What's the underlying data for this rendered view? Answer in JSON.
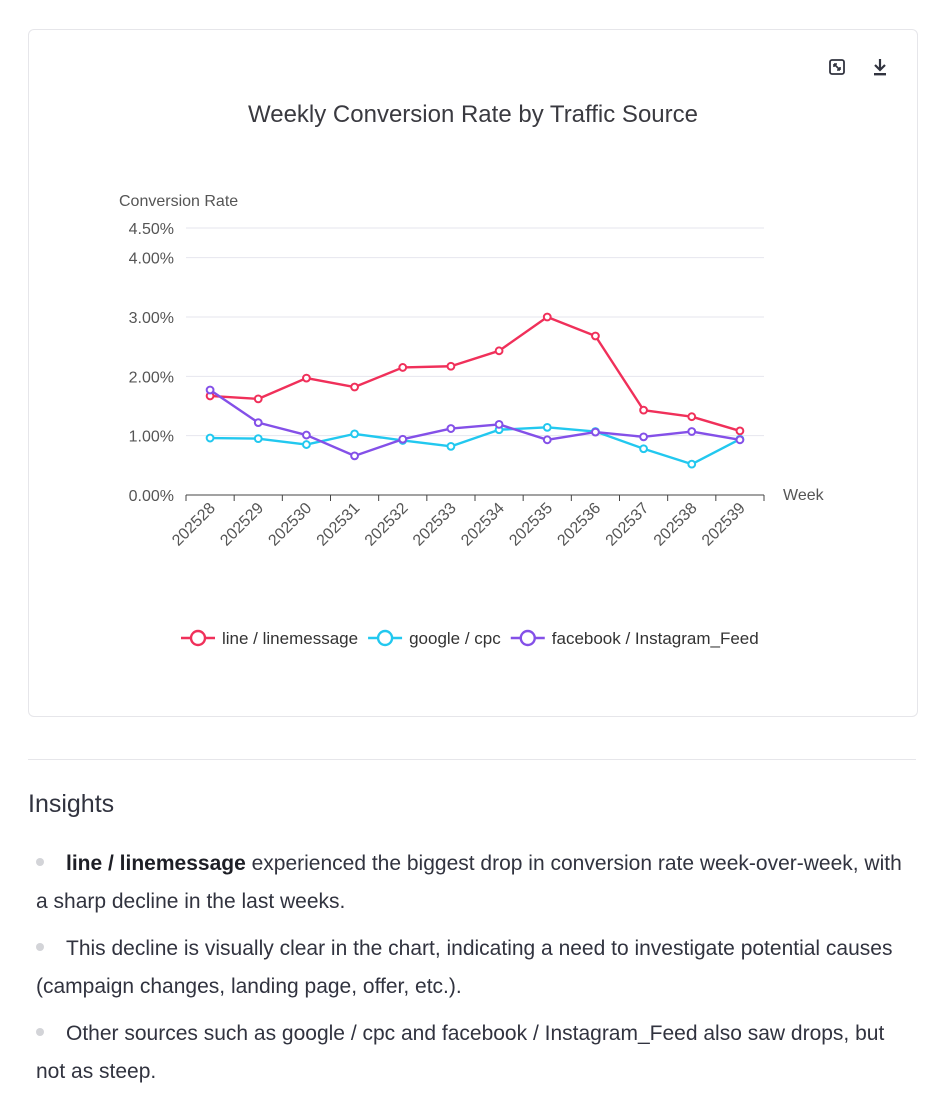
{
  "toolbar": {
    "expand_icon": "expand-icon",
    "download_icon": "download-icon"
  },
  "chart_data": {
    "type": "line",
    "title": "Weekly Conversion Rate by Traffic Source",
    "ylabel": "Conversion Rate",
    "xlabel": "Week",
    "ylim": [
      0,
      4.5
    ],
    "yticks": [
      {
        "value": 0,
        "label": "0.00%"
      },
      {
        "value": 1,
        "label": "1.00%"
      },
      {
        "value": 2,
        "label": "2.00%"
      },
      {
        "value": 3,
        "label": "3.00%"
      },
      {
        "value": 4,
        "label": "4.00%"
      },
      {
        "value": 4.5,
        "label": "4.50%"
      }
    ],
    "categories": [
      "202528",
      "202529",
      "202530",
      "202531",
      "202532",
      "202533",
      "202534",
      "202535",
      "202536",
      "202537",
      "202538",
      "202539"
    ],
    "series": [
      {
        "name": "line / linemessage",
        "color": "#f0305a",
        "values": [
          1.67,
          1.62,
          1.97,
          1.82,
          2.15,
          2.17,
          2.43,
          3.0,
          2.68,
          1.43,
          1.32,
          1.08
        ]
      },
      {
        "name": "google / cpc",
        "color": "#22c8ef",
        "values": [
          0.96,
          0.95,
          0.85,
          1.03,
          0.92,
          0.82,
          1.1,
          1.14,
          1.07,
          0.78,
          0.52,
          0.94
        ]
      },
      {
        "name": "facebook / Instagram_Feed",
        "color": "#8450e8",
        "values": [
          1.77,
          1.22,
          1.01,
          0.66,
          0.94,
          1.12,
          1.19,
          0.93,
          1.06,
          0.98,
          1.07,
          0.93
        ]
      }
    ],
    "grid": true,
    "legend": "bottom"
  },
  "insights": {
    "title": "Insights",
    "items": [
      {
        "bold": "line / linemessage",
        "text": " experienced the biggest drop in conversion rate week-over-week, with a sharp decline in the last weeks."
      },
      {
        "bold": "",
        "text": "This decline is visually clear in the chart, indicating a need to investigate potential causes (campaign changes, landing page, offer, etc.)."
      },
      {
        "bold": "",
        "text": "Other sources such as google / cpc and facebook / Instagram_Feed also saw drops, but not as steep."
      }
    ]
  }
}
